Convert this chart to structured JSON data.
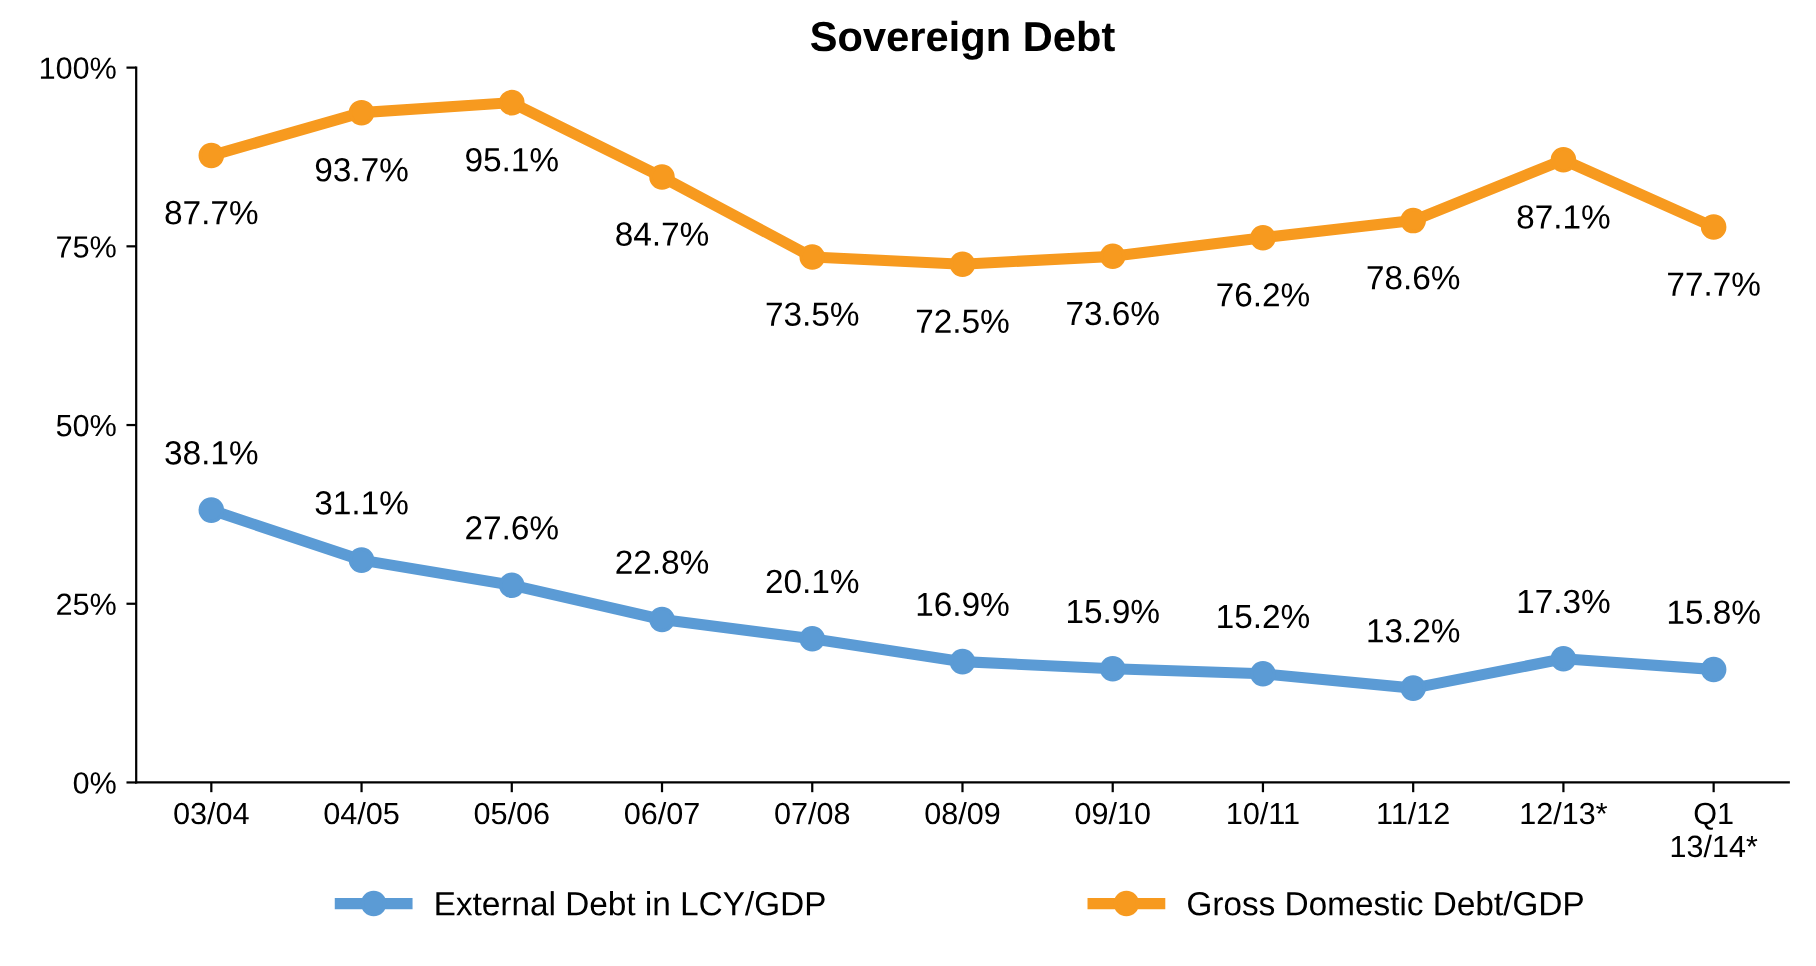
{
  "chart_data": {
    "type": "line",
    "title": "Sovereign Debt",
    "categories": [
      "03/04",
      "04/05",
      "05/06",
      "06/07",
      "07/08",
      "08/09",
      "09/10",
      "10/11",
      "11/12",
      "12/13*",
      "Q1\n13/14*"
    ],
    "series": [
      {
        "name": "External Debt in LCY/GDP",
        "color": "#5b9bd5",
        "values": [
          38.1,
          31.1,
          27.6,
          22.8,
          20.1,
          16.9,
          15.9,
          15.2,
          13.2,
          17.3,
          15.8
        ],
        "value_labels": [
          "38.1%",
          "31.1%",
          "27.6%",
          "22.8%",
          "20.1%",
          "16.9%",
          "15.9%",
          "15.2%",
          "13.2%",
          "17.3%",
          "15.8%"
        ]
      },
      {
        "name": "Gross Domestic Debt/GDP",
        "color": "#f79a1f",
        "values": [
          87.7,
          93.7,
          95.1,
          84.7,
          73.5,
          72.5,
          73.6,
          76.2,
          78.6,
          87.1,
          77.7
        ],
        "value_labels": [
          "87.7%",
          "93.7%",
          "95.1%",
          "84.7%",
          "73.5%",
          "72.5%",
          "73.6%",
          "76.2%",
          "78.6%",
          "87.1%",
          "77.7%"
        ]
      }
    ],
    "ylim": [
      0,
      100
    ],
    "yticks": [
      {
        "value": 0,
        "label": "0%"
      },
      {
        "value": 25,
        "label": "25%"
      },
      {
        "value": 50,
        "label": "50%"
      },
      {
        "value": 75,
        "label": "75%"
      },
      {
        "value": 100,
        "label": "100%"
      }
    ],
    "grid": false,
    "legend": "bottom",
    "marker": "circle",
    "line_style": "solid"
  }
}
